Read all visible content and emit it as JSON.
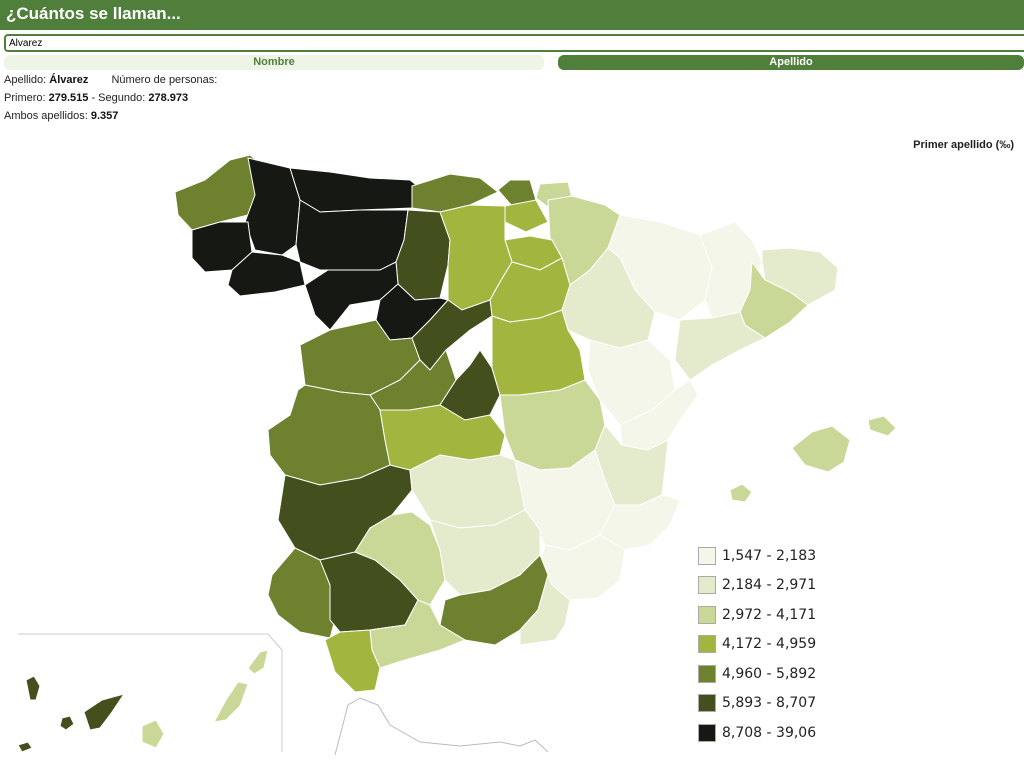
{
  "header": {
    "title": "¿Cuántos se llaman..."
  },
  "search": {
    "value": "Álvarez"
  },
  "tabs": {
    "nombre": "Nombre",
    "apellido": "Apellido"
  },
  "info": {
    "apellido_label": "Apellido:",
    "apellido_value": "Álvarez",
    "personas_label": "Número de personas:",
    "primero_label": "Primero:",
    "primero_value": "279.515",
    "segundo_label": "- Segundo:",
    "segundo_value": "278.973",
    "ambos_label": "Ambos apellidos:",
    "ambos_value": "9.357"
  },
  "map_title": "Primer apellido (‰)",
  "colors": {
    "c1": "#f4f6ea",
    "c2": "#e4ebcc",
    "c3": "#c9d897",
    "c4": "#a2b63f",
    "c5": "#6e812f",
    "c6": "#434f1c",
    "c7": "#161813"
  },
  "legend": [
    {
      "label": "1,547 - 2,183",
      "color": "#f4f6ea"
    },
    {
      "label": "2,184 - 2,971",
      "color": "#e4ebcc"
    },
    {
      "label": "2,972 - 4,171",
      "color": "#c9d897"
    },
    {
      "label": "4,172 - 4,959",
      "color": "#a2b63f"
    },
    {
      "label": "4,960 - 5,892",
      "color": "#6e812f"
    },
    {
      "label": "5,893 - 8,707",
      "color": "#434f1c"
    },
    {
      "label": "8,708 - 39,06",
      "color": "#161813"
    }
  ]
}
